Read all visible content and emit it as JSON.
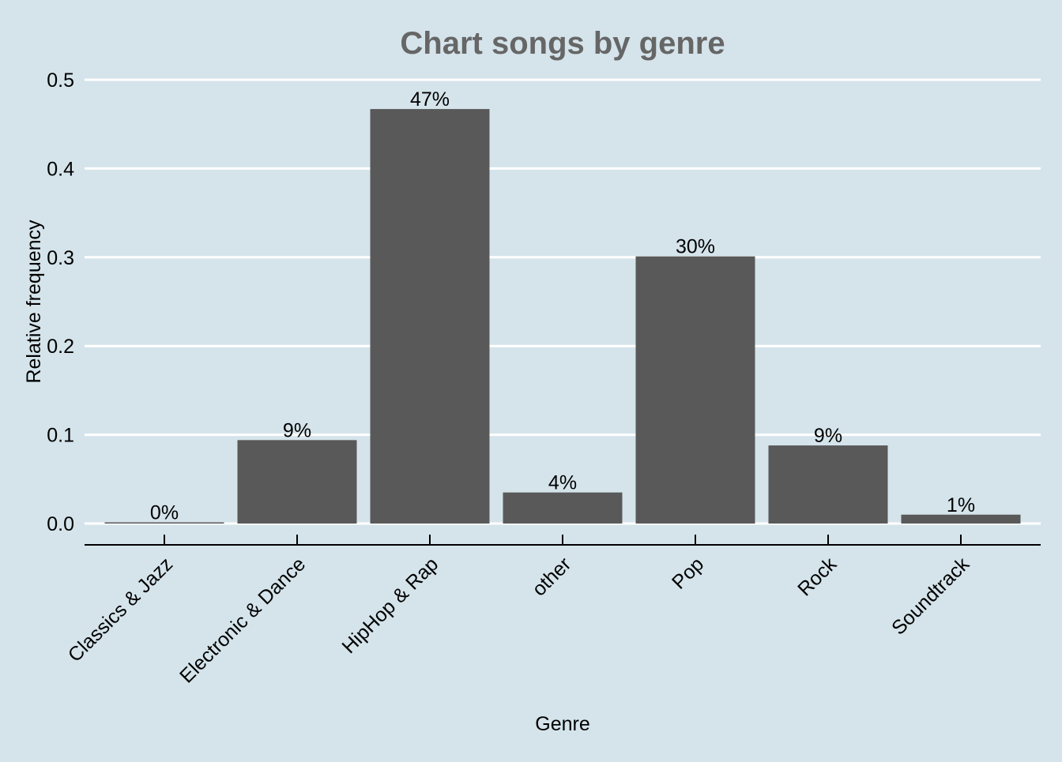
{
  "chart_data": {
    "type": "bar",
    "title": "Chart songs by genre",
    "xlabel": "Genre",
    "ylabel": "Relative frequency",
    "categories": [
      "Classics & Jazz",
      "Electronic & Dance",
      "HipHop & Rap",
      "other",
      "Pop",
      "Rock",
      "Soundtrack"
    ],
    "values": [
      0.001,
      0.094,
      0.467,
      0.035,
      0.301,
      0.088,
      0.01
    ],
    "data_labels": [
      "0%",
      "9%",
      "47%",
      "4%",
      "30%",
      "9%",
      "1%"
    ],
    "ylim": [
      0,
      0.5
    ],
    "yticks": [
      "0.0",
      "0.1",
      "0.2",
      "0.3",
      "0.4",
      "0.5"
    ],
    "ytick_values": [
      0,
      0.1,
      0.2,
      0.3,
      0.4,
      0.5
    ],
    "grid": "horizontal",
    "legend": "none",
    "colors": {
      "background": "#d5e4eb",
      "bar": "#595959",
      "grid": "#ffffff",
      "title": "#666666",
      "text": "#000000"
    }
  }
}
